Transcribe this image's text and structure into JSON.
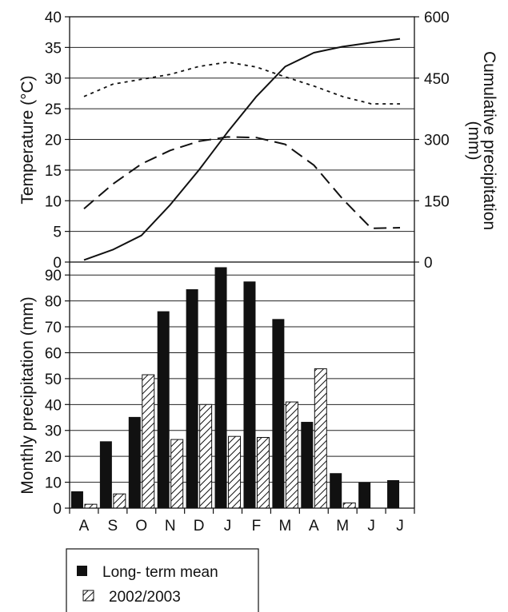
{
  "chart_data": [
    {
      "type": "line",
      "ylabel": "Temperature (°C)",
      "y2label_line1": "Cumulative precipitation",
      "y2label_line2": "(mm)",
      "ylim": [
        0,
        40
      ],
      "y2lim": [
        0,
        600
      ],
      "yticks": [
        "0",
        "5",
        "10",
        "15",
        "20",
        "25",
        "30",
        "35",
        "40"
      ],
      "y2ticks": [
        "0",
        "150",
        "300",
        "450",
        "600"
      ],
      "categories": [
        "A",
        "S",
        "O",
        "N",
        "D",
        "J",
        "F",
        "M",
        "A",
        "M",
        "J",
        "J"
      ],
      "series": [
        {
          "style": "dotted",
          "axis": "left",
          "values": [
            27.0,
            29.0,
            29.8,
            30.6,
            31.9,
            32.6,
            31.8,
            30.2,
            28.7,
            27.0,
            25.8,
            25.8
          ]
        },
        {
          "style": "dashed",
          "axis": "left",
          "values": [
            8.7,
            12.7,
            16.0,
            18.2,
            19.7,
            20.4,
            20.3,
            19.2,
            15.8,
            10.3,
            5.5,
            5.6
          ]
        },
        {
          "style": "solid",
          "axis": "right",
          "values": [
            5,
            30,
            65,
            140,
            225,
            318,
            405,
            478,
            512,
            527,
            537,
            546
          ]
        }
      ]
    },
    {
      "type": "bar",
      "ylabel": "Monthly precipitation (mm)",
      "ylim": [
        0,
        95
      ],
      "yticks": [
        "0",
        "10",
        "20",
        "30",
        "40",
        "50",
        "60",
        "70",
        "80",
        "90"
      ],
      "categories": [
        "A",
        "S",
        "O",
        "N",
        "D",
        "J",
        "F",
        "M",
        "A",
        "M",
        "J",
        "J"
      ],
      "series": [
        {
          "name": "Long- term mean",
          "fill": "solid",
          "values": [
            6.5,
            25.8,
            35.2,
            76.0,
            84.5,
            93.0,
            87.5,
            73.0,
            33.3,
            13.5,
            10.0,
            10.8
          ]
        },
        {
          "name": "2002/2003",
          "fill": "hatched",
          "values": [
            1.5,
            5.5,
            51.5,
            26.5,
            40.0,
            27.7,
            27.3,
            41.0,
            53.8,
            2.0,
            0,
            0
          ]
        }
      ],
      "legend_position": "bottom-left"
    }
  ]
}
